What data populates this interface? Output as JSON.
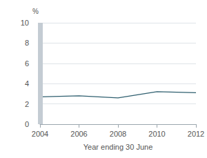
{
  "chart_data": {
    "type": "line",
    "x_label": "Year ending 30 June",
    "y_label": "%",
    "x": [
      2004,
      2005,
      2006,
      2007,
      2008,
      2009,
      2010,
      2011,
      2012
    ],
    "values": [
      2.7,
      2.75,
      2.8,
      2.7,
      2.6,
      2.9,
      3.2,
      3.15,
      3.1
    ],
    "color": "#2f5f6f",
    "xlim": [
      2004,
      2012
    ],
    "xticks": [
      2004,
      2006,
      2008,
      2010,
      2012
    ],
    "ylim": [
      0,
      10
    ],
    "yticks": [
      0,
      2,
      4,
      6,
      8,
      10
    ],
    "grid": true
  }
}
